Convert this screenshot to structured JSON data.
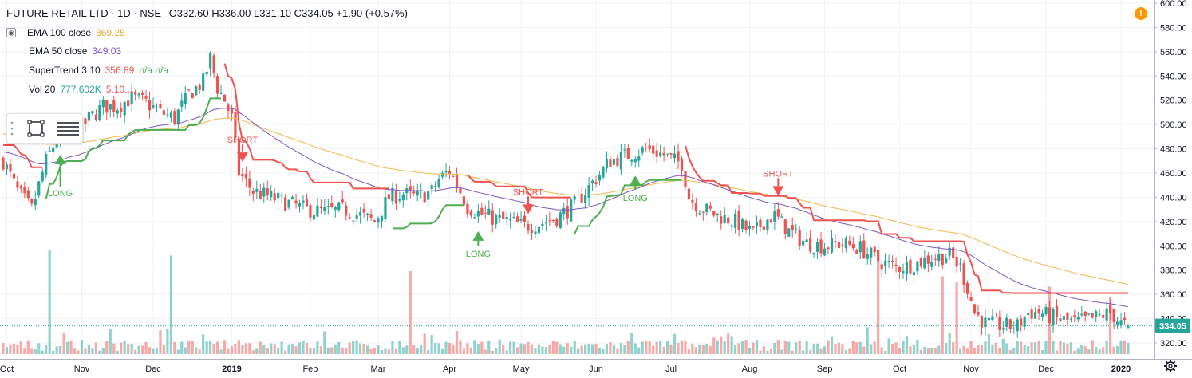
{
  "header": {
    "symbol": "FUTURE RETAIL LTD · 1D · NSE",
    "open": "O332.60",
    "high": "H336.00",
    "low": "L331.10",
    "close": "C334.05",
    "change": "+1.90 (+0.57%)"
  },
  "indicators": [
    {
      "label": "EMA 100 close",
      "value": "369.25",
      "color": "#e8a838"
    },
    {
      "label": "EMA 50 close",
      "value": "349.03",
      "color": "#7e57c2"
    },
    {
      "label": "SuperTrend 3 10",
      "value": "356.89",
      "extra": "n/a n/a",
      "color": "#ef5350"
    },
    {
      "label": "Vol 20",
      "value": "777.602K",
      "extra": "5.10...",
      "color": "#26a69a"
    }
  ],
  "price_tag": "334.05",
  "icons": [
    "warning-icon",
    "rectangle-tool-icon",
    "lines-tool-icon",
    "settings-gear-icon"
  ],
  "colors": {
    "up": "#26a69a",
    "down": "#ef5350",
    "st_up": "#4caf50",
    "st_down": "#ef5350",
    "ema100": "#f5b94a",
    "ema50": "#7e57c2"
  },
  "chart_data": {
    "type": "candlestick",
    "title": "FUTURE RETAIL LTD · 1D · NSE",
    "ylim": [
      310,
      600
    ],
    "y_ticks": [
      "320.00",
      "340.00",
      "360.00",
      "380.00",
      "400.00",
      "420.00",
      "440.00",
      "460.00",
      "480.00",
      "500.00",
      "520.00",
      "540.00",
      "560.00",
      "580.00",
      "600.00"
    ],
    "x_ticks": [
      {
        "label": "Oct",
        "t": 1
      },
      {
        "label": "Nov",
        "t": 22
      },
      {
        "label": "Dec",
        "t": 42
      },
      {
        "label": "2019",
        "t": 64
      },
      {
        "label": "Feb",
        "t": 86
      },
      {
        "label": "Mar",
        "t": 105
      },
      {
        "label": "Apr",
        "t": 125
      },
      {
        "label": "May",
        "t": 145
      },
      {
        "label": "Jun",
        "t": 166
      },
      {
        "label": "Jul",
        "t": 187
      },
      {
        "label": "Aug",
        "t": 209
      },
      {
        "label": "Sep",
        "t": 230
      },
      {
        "label": "Oct",
        "t": 251
      },
      {
        "label": "Nov",
        "t": 271
      },
      {
        "label": "Dec",
        "t": 292
      },
      {
        "label": "2020",
        "t": 313
      }
    ],
    "n_bars": 316,
    "close_anchors": [
      [
        0,
        470
      ],
      [
        4,
        445
      ],
      [
        8,
        430
      ],
      [
        12,
        470
      ],
      [
        16,
        495
      ],
      [
        20,
        490
      ],
      [
        24,
        505
      ],
      [
        28,
        515
      ],
      [
        32,
        515
      ],
      [
        36,
        522
      ],
      [
        40,
        518
      ],
      [
        44,
        510
      ],
      [
        48,
        505
      ],
      [
        52,
        525
      ],
      [
        56,
        535
      ],
      [
        58,
        555
      ],
      [
        60,
        530
      ],
      [
        62,
        520
      ],
      [
        64,
        505
      ],
      [
        66,
        460
      ],
      [
        70,
        445
      ],
      [
        75,
        440
      ],
      [
        80,
        435
      ],
      [
        85,
        430
      ],
      [
        90,
        428
      ],
      [
        95,
        430
      ],
      [
        100,
        425
      ],
      [
        104,
        420
      ],
      [
        108,
        440
      ],
      [
        112,
        443
      ],
      [
        116,
        440
      ],
      [
        120,
        445
      ],
      [
        122,
        455
      ],
      [
        125,
        462
      ],
      [
        128,
        445
      ],
      [
        130,
        432
      ],
      [
        134,
        426
      ],
      [
        138,
        422
      ],
      [
        142,
        420
      ],
      [
        146,
        416
      ],
      [
        150,
        418
      ],
      [
        155,
        423
      ],
      [
        160,
        434
      ],
      [
        165,
        452
      ],
      [
        170,
        470
      ],
      [
        175,
        475
      ],
      [
        180,
        480
      ],
      [
        185,
        475
      ],
      [
        188,
        470
      ],
      [
        190,
        468
      ],
      [
        192,
        440
      ],
      [
        195,
        432
      ],
      [
        200,
        425
      ],
      [
        205,
        420
      ],
      [
        210,
        410
      ],
      [
        213,
        420
      ],
      [
        216,
        425
      ],
      [
        220,
        412
      ],
      [
        225,
        402
      ],
      [
        230,
        400
      ],
      [
        235,
        402
      ],
      [
        240,
        398
      ],
      [
        245,
        388
      ],
      [
        250,
        382
      ],
      [
        255,
        385
      ],
      [
        260,
        390
      ],
      [
        265,
        392
      ],
      [
        268,
        382
      ],
      [
        270,
        365
      ],
      [
        272,
        345
      ],
      [
        275,
        336
      ],
      [
        280,
        334
      ],
      [
        284,
        334
      ],
      [
        287,
        345
      ],
      [
        290,
        345
      ],
      [
        295,
        340
      ],
      [
        300,
        337
      ],
      [
        305,
        340
      ],
      [
        310,
        345
      ],
      [
        313,
        336
      ],
      [
        315,
        334
      ]
    ],
    "wick_spikes": [
      [
        276,
        390
      ],
      [
        310,
        356
      ]
    ],
    "ema100": "exponential moving average (100) of close",
    "ema50": "exponential moving average (50) of close",
    "supertrend": "SuperTrend 3 10",
    "signals": [
      {
        "label": "LONG",
        "t": 16,
        "type": "long"
      },
      {
        "label": "SHORT",
        "t": 67,
        "type": "short"
      },
      {
        "label": "LONG",
        "t": 133,
        "type": "long"
      },
      {
        "label": "SHORT",
        "t": 147,
        "type": "short"
      },
      {
        "label": "LONG",
        "t": 177,
        "type": "long"
      },
      {
        "label": "SHORT",
        "t": 217,
        "type": "short"
      }
    ],
    "volume_spikes": [
      [
        13,
        1.0
      ],
      [
        47,
        0.95
      ],
      [
        114,
        0.8
      ],
      [
        245,
        1.0
      ],
      [
        263,
        0.75
      ],
      [
        267,
        0.7
      ],
      [
        293,
        0.65
      ],
      [
        310,
        0.55
      ]
    ],
    "grid": true,
    "legend": "top-left"
  }
}
